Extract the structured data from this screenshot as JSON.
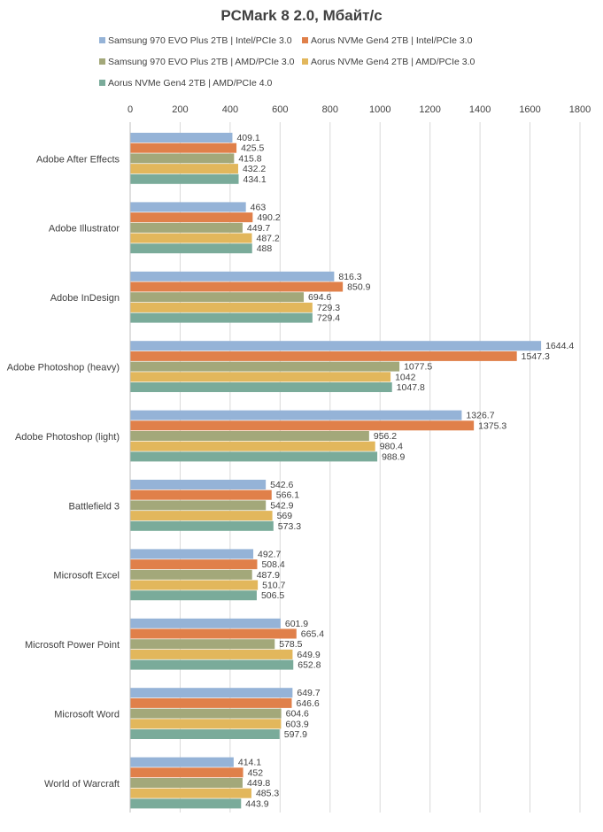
{
  "chart_data": {
    "type": "bar",
    "orientation": "horizontal",
    "title": "PCMark 8 2.0, Мбайт/с",
    "xlim": [
      0,
      1800
    ],
    "x_ticks": [
      "0",
      "200",
      "400",
      "600",
      "800",
      "1000",
      "1200",
      "1400",
      "1600",
      "1800"
    ],
    "x_tick_values": [
      0,
      200,
      400,
      600,
      800,
      1000,
      1200,
      1400,
      1600,
      1800
    ],
    "grid": "vertical",
    "legend_position": "top",
    "categories": [
      "Adobe After Effects",
      "Adobe Illustrator",
      "Adobe InDesign",
      "Adobe Photoshop (heavy)",
      "Adobe Photoshop (light)",
      "Battlefield 3",
      "Microsoft Excel",
      "Microsoft Power Point",
      "Microsoft Word",
      "World of Warcraft"
    ],
    "series": [
      {
        "name": "Samsung 970 EVO Plus 2TB | Intel/PCIe 3.0",
        "color": "#95b3d7",
        "values": [
          409.1,
          463,
          816.3,
          1644.4,
          1326.7,
          542.6,
          492.7,
          601.9,
          649.7,
          414.1
        ],
        "labels": [
          "409.1",
          "463",
          "816.3",
          "1644.4",
          "1326.7",
          "542.6",
          "492.7",
          "601.9",
          "649.7",
          "414.1"
        ]
      },
      {
        "name": "Aorus NVMe Gen4 2TB | Intel/PCIe 3.0",
        "color": "#e0804a",
        "values": [
          425.5,
          490.2,
          850.9,
          1547.3,
          1375.3,
          566.1,
          508.4,
          665.4,
          646.6,
          452
        ],
        "labels": [
          "425.5",
          "490.2",
          "850.9",
          "1547.3",
          "1375.3",
          "566.1",
          "508.4",
          "665.4",
          "646.6",
          "452"
        ]
      },
      {
        "name": "Samsung 970 EVO Plus 2TB | AMD/PCIe 3.0",
        "color": "#a3a87a",
        "values": [
          415.8,
          449.7,
          694.6,
          1077.5,
          956.2,
          542.9,
          487.9,
          578.5,
          604.6,
          449.8
        ],
        "labels": [
          "415.8",
          "449.7",
          "694.6",
          "1077.5",
          "956.2",
          "542.9",
          "487.9",
          "578.5",
          "604.6",
          "449.8"
        ]
      },
      {
        "name": "Aorus NVMe Gen4 2TB | AMD/PCIe 3.0",
        "color": "#e2b75c",
        "values": [
          432.2,
          487.2,
          729.3,
          1042,
          980.4,
          569,
          510.7,
          649.9,
          603.9,
          485.3
        ],
        "labels": [
          "432.2",
          "487.2",
          "729.3",
          "1042",
          "980.4",
          "569",
          "510.7",
          "649.9",
          "603.9",
          "485.3"
        ]
      },
      {
        "name": "Aorus NVMe Gen4 2TB | AMD/PCIe 4.0",
        "color": "#7aab9a",
        "values": [
          434.1,
          488,
          729.4,
          1047.8,
          988.9,
          573.3,
          506.5,
          652.8,
          597.9,
          443.9
        ],
        "labels": [
          "434.1",
          "488",
          "729.4",
          "1047.8",
          "988.9",
          "573.3",
          "506.5",
          "652.8",
          "597.9",
          "443.9"
        ]
      }
    ]
  }
}
